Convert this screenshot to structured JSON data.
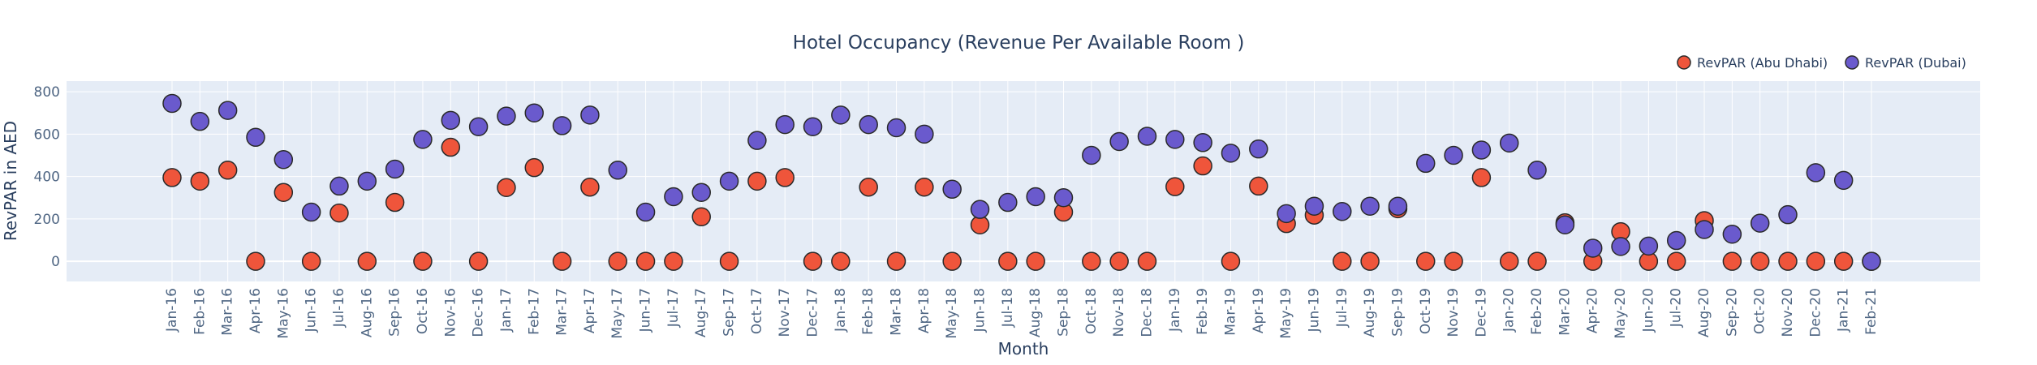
{
  "chart_data": {
    "type": "scatter",
    "title": "Hotel Occupancy (Revenue Per Available Room )",
    "xlabel": "Month",
    "ylabel": "RevPAR in AED",
    "ylim": [
      -95,
      850
    ],
    "yticks": [
      0,
      200,
      400,
      600,
      800
    ],
    "grid": true,
    "legend_position": "top-right",
    "x": [
      "Jan-16",
      "Feb-16",
      "Mar-16",
      "Apr-16",
      "May-16",
      "Jun-16",
      "Jul-16",
      "Aug-16",
      "Sep-16",
      "Oct-16",
      "Nov-16",
      "Dec-16",
      "Jan-17",
      "Feb-17",
      "Mar-17",
      "Apr-17",
      "May-17",
      "Jun-17",
      "Jul-17",
      "Aug-17",
      "Sep-17",
      "Oct-17",
      "Nov-17",
      "Dec-17",
      "Jan-18",
      "Feb-18",
      "Mar-18",
      "Apr-18",
      "May-18",
      "Jun-18",
      "Jul-18",
      "Aug-18",
      "Sep-18",
      "Oct-18",
      "Nov-18",
      "Dec-18",
      "Jan-19",
      "Feb-19",
      "Mar-19",
      "Apr-19",
      "May-19",
      "Jun-19",
      "Jul-19",
      "Aug-19",
      "Sep-19",
      "Oct-19",
      "Nov-19",
      "Dec-19",
      "Jan-20",
      "Feb-20",
      "Mar-20",
      "Apr-20",
      "May-20",
      "Jun-20",
      "Jul-20",
      "Aug-20",
      "Sep-20",
      "Oct-20",
      "Nov-20",
      "Dec-20",
      "Jan-21",
      "Feb-21"
    ],
    "series": [
      {
        "name": "RevPAR (Abu Dhabi)",
        "color": "#EF553B",
        "values": [
          395,
          378,
          430,
          0,
          325,
          0,
          228,
          0,
          278,
          0,
          538,
          0,
          348,
          442,
          0,
          350,
          0,
          0,
          0,
          210,
          0,
          378,
          395,
          0,
          0,
          350,
          0,
          350,
          0,
          172,
          0,
          0,
          232,
          0,
          0,
          0,
          352,
          450,
          0,
          355,
          178,
          218,
          0,
          0,
          248,
          0,
          0,
          395,
          0,
          0,
          182,
          0,
          140,
          0,
          0,
          192,
          0,
          0,
          0,
          0,
          0,
          0
        ]
      },
      {
        "name": "RevPAR (Dubai)",
        "color": "#636EFA",
        "fill": "#6A5ACD",
        "values": [
          745,
          660,
          712,
          585,
          480,
          232,
          355,
          378,
          435,
          575,
          665,
          635,
          685,
          700,
          640,
          690,
          430,
          232,
          305,
          325,
          378,
          570,
          645,
          635,
          690,
          645,
          630,
          600,
          340,
          245,
          278,
          305,
          300,
          500,
          565,
          590,
          575,
          560,
          510,
          530,
          225,
          260,
          235,
          260,
          260,
          462,
          500,
          525,
          558,
          430,
          172,
          62,
          70,
          72,
          98,
          150,
          128,
          180,
          220,
          418,
          382,
          0
        ]
      }
    ]
  }
}
